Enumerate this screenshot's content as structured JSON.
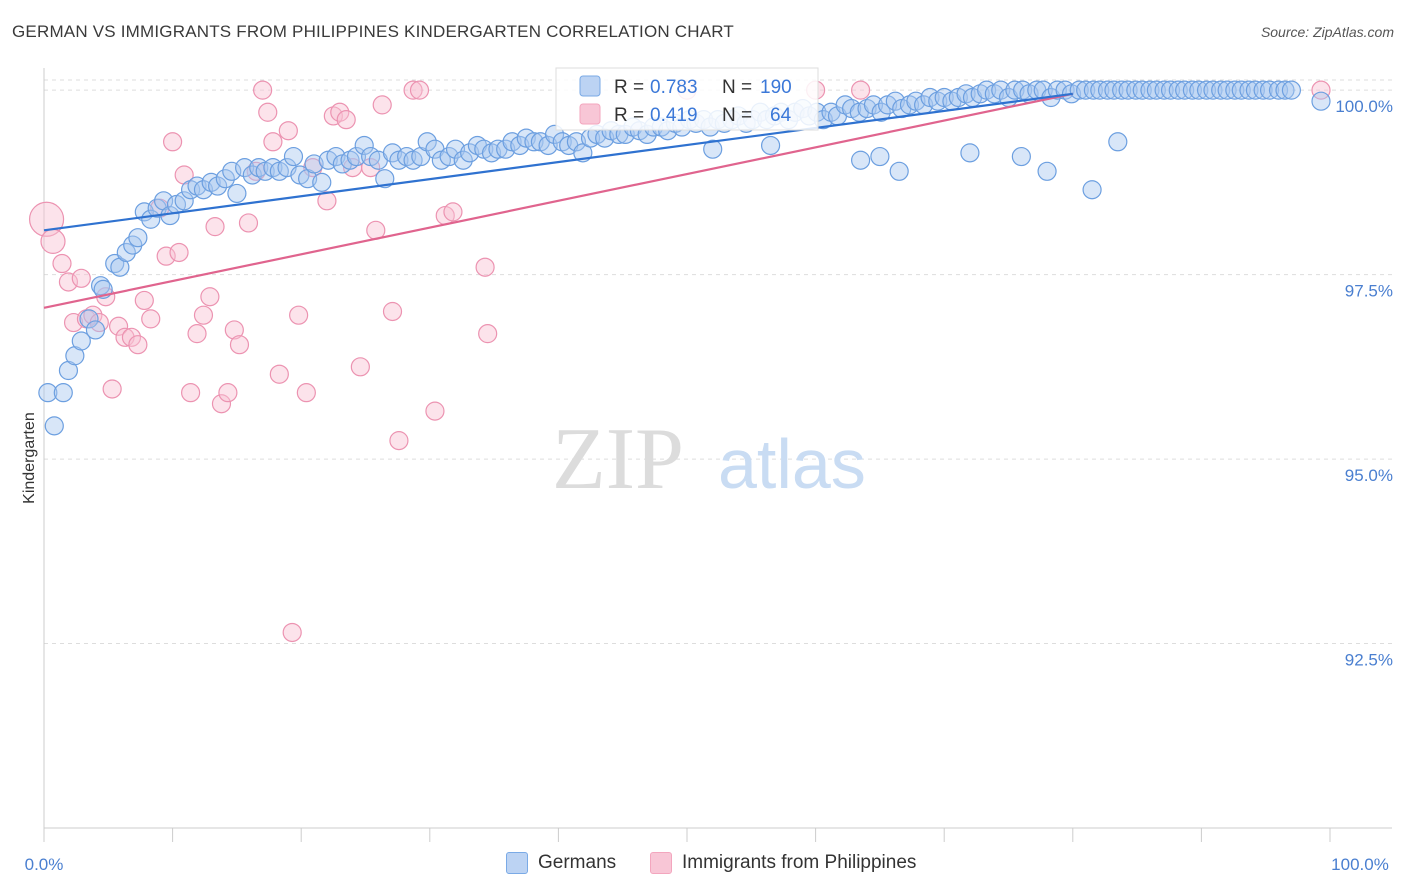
{
  "title": "GERMAN VS IMMIGRANTS FROM PHILIPPINES KINDERGARTEN CORRELATION CHART",
  "source": "Source: ZipAtlas.com",
  "watermark": {
    "zip": "ZIP",
    "atlas": "atlas"
  },
  "colors": {
    "blue": "#7aaae6",
    "blue_line": "#2f72d0",
    "pink": "#f3a6be",
    "pink_line": "#e0648e",
    "grid": "#dddddd",
    "tick_text": "#4a7fd0"
  },
  "legend": {
    "blue": {
      "r_label": "R =",
      "r_value": "0.783",
      "n_label": "N =",
      "n_value": "190"
    },
    "pink": {
      "r_label": "R =",
      "r_value": "0.419",
      "n_label": "N =",
      "n_value": "64"
    }
  },
  "bottom_legend": {
    "germans": "Germans",
    "philippines": "Immigrants from Philippines"
  },
  "chart_data": {
    "type": "scatter",
    "title": "GERMAN VS IMMIGRANTS FROM PHILIPPINES KINDERGARTEN CORRELATION CHART",
    "xlabel": "",
    "ylabel": "Kindergarten",
    "xlim": [
      0,
      100
    ],
    "ylim": [
      90.0,
      100.3
    ],
    "x_tick_labels": [
      "0.0%",
      "100.0%"
    ],
    "y_ticks": [
      92.5,
      95.0,
      97.5,
      100.0
    ],
    "y_tick_labels": [
      "92.5%",
      "95.0%",
      "97.5%",
      "100.0%"
    ],
    "grid": true,
    "legend_position": "top-center",
    "series": [
      {
        "name": "Germans",
        "color": "#7aaae6",
        "r": 0.783,
        "n": 190,
        "trend": {
          "x": [
            0,
            80
          ],
          "y": [
            98.1,
            99.95
          ]
        },
        "points": [
          [
            0.3,
            95.9
          ],
          [
            0.8,
            95.45
          ],
          [
            1.5,
            95.9
          ],
          [
            1.9,
            96.2
          ],
          [
            2.4,
            96.4
          ],
          [
            2.9,
            96.6
          ],
          [
            3.5,
            96.9
          ],
          [
            4.0,
            96.75
          ],
          [
            4.4,
            97.35
          ],
          [
            4.6,
            97.3
          ],
          [
            5.5,
            97.65
          ],
          [
            5.9,
            97.6
          ],
          [
            6.4,
            97.8
          ],
          [
            6.9,
            97.9
          ],
          [
            7.3,
            98.0
          ],
          [
            7.8,
            98.35
          ],
          [
            8.3,
            98.25
          ],
          [
            8.8,
            98.4
          ],
          [
            9.3,
            98.5
          ],
          [
            9.8,
            98.3
          ],
          [
            10.3,
            98.45
          ],
          [
            10.9,
            98.5
          ],
          [
            11.4,
            98.65
          ],
          [
            11.9,
            98.7
          ],
          [
            12.4,
            98.65
          ],
          [
            13.0,
            98.75
          ],
          [
            13.5,
            98.7
          ],
          [
            14.1,
            98.8
          ],
          [
            14.6,
            98.9
          ],
          [
            15.0,
            98.6
          ],
          [
            15.6,
            98.95
          ],
          [
            16.2,
            98.85
          ],
          [
            16.7,
            98.95
          ],
          [
            17.2,
            98.9
          ],
          [
            17.8,
            98.95
          ],
          [
            18.3,
            98.9
          ],
          [
            18.9,
            98.95
          ],
          [
            19.4,
            99.1
          ],
          [
            19.9,
            98.85
          ],
          [
            20.5,
            98.8
          ],
          [
            21.0,
            99.0
          ],
          [
            21.6,
            98.75
          ],
          [
            22.1,
            99.05
          ],
          [
            22.7,
            99.1
          ],
          [
            23.2,
            99.0
          ],
          [
            23.8,
            99.05
          ],
          [
            24.3,
            99.1
          ],
          [
            24.9,
            99.25
          ],
          [
            25.4,
            99.1
          ],
          [
            26.0,
            99.05
          ],
          [
            26.5,
            98.8
          ],
          [
            27.1,
            99.15
          ],
          [
            27.6,
            99.05
          ],
          [
            28.2,
            99.1
          ],
          [
            28.7,
            99.05
          ],
          [
            29.3,
            99.1
          ],
          [
            29.8,
            99.3
          ],
          [
            30.4,
            99.2
          ],
          [
            30.9,
            99.05
          ],
          [
            31.5,
            99.1
          ],
          [
            32.0,
            99.2
          ],
          [
            32.6,
            99.05
          ],
          [
            33.1,
            99.15
          ],
          [
            33.7,
            99.25
          ],
          [
            34.2,
            99.2
          ],
          [
            34.8,
            99.15
          ],
          [
            35.3,
            99.2
          ],
          [
            35.9,
            99.2
          ],
          [
            36.4,
            99.3
          ],
          [
            37.0,
            99.25
          ],
          [
            37.5,
            99.35
          ],
          [
            38.1,
            99.3
          ],
          [
            38.6,
            99.3
          ],
          [
            39.2,
            99.25
          ],
          [
            39.7,
            99.4
          ],
          [
            40.3,
            99.3
          ],
          [
            40.8,
            99.25
          ],
          [
            41.4,
            99.3
          ],
          [
            41.9,
            99.15
          ],
          [
            42.5,
            99.35
          ],
          [
            43.0,
            99.4
          ],
          [
            43.6,
            99.35
          ],
          [
            44.1,
            99.45
          ],
          [
            44.7,
            99.4
          ],
          [
            45.2,
            99.4
          ],
          [
            45.8,
            99.5
          ],
          [
            46.3,
            99.45
          ],
          [
            46.9,
            99.4
          ],
          [
            47.4,
            99.5
          ],
          [
            48.0,
            99.5
          ],
          [
            48.5,
            99.45
          ],
          [
            49.1,
            99.55
          ],
          [
            49.6,
            99.5
          ],
          [
            50.2,
            99.6
          ],
          [
            50.7,
            99.55
          ],
          [
            51.3,
            99.6
          ],
          [
            51.8,
            99.5
          ],
          [
            52.4,
            99.6
          ],
          [
            52.9,
            99.55
          ],
          [
            53.5,
            99.6
          ],
          [
            54.0,
            99.65
          ],
          [
            54.6,
            99.55
          ],
          [
            55.1,
            99.6
          ],
          [
            55.7,
            99.7
          ],
          [
            56.2,
            99.6
          ],
          [
            56.8,
            99.65
          ],
          [
            57.3,
            99.7
          ],
          [
            57.9,
            99.6
          ],
          [
            58.4,
            99.7
          ],
          [
            59.0,
            99.75
          ],
          [
            59.5,
            99.65
          ],
          [
            60.1,
            99.7
          ],
          [
            60.6,
            99.6
          ],
          [
            61.2,
            99.7
          ],
          [
            61.7,
            99.65
          ],
          [
            62.3,
            99.8
          ],
          [
            62.8,
            99.75
          ],
          [
            63.4,
            99.7
          ],
          [
            64.0,
            99.75
          ],
          [
            64.5,
            99.8
          ],
          [
            65.1,
            99.7
          ],
          [
            65.6,
            99.8
          ],
          [
            66.2,
            99.85
          ],
          [
            66.7,
            99.75
          ],
          [
            67.3,
            99.8
          ],
          [
            67.8,
            99.85
          ],
          [
            68.4,
            99.8
          ],
          [
            68.9,
            99.9
          ],
          [
            69.5,
            99.85
          ],
          [
            70.0,
            99.9
          ],
          [
            70.6,
            99.85
          ],
          [
            71.1,
            99.9
          ],
          [
            71.7,
            99.95
          ],
          [
            72.2,
            99.9
          ],
          [
            72.8,
            99.95
          ],
          [
            73.3,
            100.0
          ],
          [
            73.9,
            99.95
          ],
          [
            74.4,
            100.0
          ],
          [
            75.0,
            99.9
          ],
          [
            75.5,
            100.0
          ],
          [
            76.1,
            100.0
          ],
          [
            76.6,
            99.95
          ],
          [
            77.2,
            100.0
          ],
          [
            77.7,
            100.0
          ],
          [
            78.3,
            99.9
          ],
          [
            78.8,
            100.0
          ],
          [
            79.4,
            100.0
          ],
          [
            79.9,
            99.95
          ],
          [
            80.5,
            100.0
          ],
          [
            81.0,
            100.0
          ],
          [
            81.6,
            100.0
          ],
          [
            82.1,
            100.0
          ],
          [
            82.7,
            100.0
          ],
          [
            83.2,
            100.0
          ],
          [
            83.8,
            100.0
          ],
          [
            84.3,
            100.0
          ],
          [
            84.9,
            100.0
          ],
          [
            85.4,
            100.0
          ],
          [
            86.0,
            100.0
          ],
          [
            86.5,
            100.0
          ],
          [
            87.1,
            100.0
          ],
          [
            87.6,
            100.0
          ],
          [
            88.2,
            100.0
          ],
          [
            88.7,
            100.0
          ],
          [
            89.3,
            100.0
          ],
          [
            89.8,
            100.0
          ],
          [
            90.4,
            100.0
          ],
          [
            90.9,
            100.0
          ],
          [
            91.5,
            100.0
          ],
          [
            92.0,
            100.0
          ],
          [
            92.6,
            100.0
          ],
          [
            93.1,
            100.0
          ],
          [
            93.7,
            100.0
          ],
          [
            94.2,
            100.0
          ],
          [
            94.8,
            100.0
          ],
          [
            95.3,
            100.0
          ],
          [
            96.0,
            100.0
          ],
          [
            96.5,
            100.0
          ],
          [
            97.0,
            100.0
          ],
          [
            99.3,
            99.85
          ],
          [
            63.5,
            99.05
          ],
          [
            65.0,
            99.1
          ],
          [
            66.5,
            98.9
          ],
          [
            76.0,
            99.1
          ],
          [
            78.0,
            98.9
          ],
          [
            81.5,
            98.65
          ],
          [
            83.5,
            99.3
          ],
          [
            72.0,
            99.15
          ],
          [
            52.0,
            99.2
          ],
          [
            56.5,
            99.25
          ]
        ]
      },
      {
        "name": "Immigrants from Philippines",
        "color": "#f3a6be",
        "r": 0.419,
        "n": 64,
        "trend": {
          "x": [
            0,
            80
          ],
          "y": [
            97.05,
            99.95
          ]
        },
        "points": [
          [
            0.2,
            98.25
          ],
          [
            0.7,
            97.95
          ],
          [
            1.4,
            97.65
          ],
          [
            1.9,
            97.4
          ],
          [
            2.3,
            96.85
          ],
          [
            2.9,
            97.45
          ],
          [
            3.3,
            96.9
          ],
          [
            3.8,
            96.95
          ],
          [
            4.3,
            96.85
          ],
          [
            4.8,
            97.2
          ],
          [
            5.3,
            95.95
          ],
          [
            5.8,
            96.8
          ],
          [
            6.3,
            96.65
          ],
          [
            6.8,
            96.65
          ],
          [
            7.3,
            96.55
          ],
          [
            7.8,
            97.15
          ],
          [
            8.3,
            96.9
          ],
          [
            9.0,
            98.4
          ],
          [
            9.5,
            97.75
          ],
          [
            10.0,
            99.3
          ],
          [
            10.5,
            97.8
          ],
          [
            10.9,
            98.85
          ],
          [
            11.4,
            95.9
          ],
          [
            11.9,
            96.7
          ],
          [
            12.4,
            96.95
          ],
          [
            12.9,
            97.2
          ],
          [
            13.3,
            98.15
          ],
          [
            13.8,
            95.75
          ],
          [
            14.3,
            95.9
          ],
          [
            14.8,
            96.75
          ],
          [
            15.2,
            96.55
          ],
          [
            15.9,
            98.2
          ],
          [
            16.5,
            98.9
          ],
          [
            17.0,
            100.0
          ],
          [
            17.4,
            99.7
          ],
          [
            17.8,
            99.3
          ],
          [
            18.3,
            96.15
          ],
          [
            19.0,
            99.45
          ],
          [
            19.3,
            92.65
          ],
          [
            19.8,
            96.95
          ],
          [
            20.4,
            95.9
          ],
          [
            20.9,
            98.95
          ],
          [
            22.0,
            98.5
          ],
          [
            22.5,
            99.65
          ],
          [
            23.0,
            99.7
          ],
          [
            23.5,
            99.6
          ],
          [
            24.0,
            98.95
          ],
          [
            24.6,
            96.25
          ],
          [
            25.4,
            98.95
          ],
          [
            25.8,
            98.1
          ],
          [
            26.3,
            99.8
          ],
          [
            27.1,
            97.0
          ],
          [
            27.6,
            95.25
          ],
          [
            28.7,
            100.0
          ],
          [
            29.2,
            100.0
          ],
          [
            30.4,
            95.65
          ],
          [
            31.2,
            98.3
          ],
          [
            31.8,
            98.35
          ],
          [
            34.3,
            97.6
          ],
          [
            34.5,
            96.7
          ],
          [
            50.0,
            100.0
          ],
          [
            60.0,
            100.0
          ],
          [
            63.5,
            100.0
          ],
          [
            99.3,
            100.0
          ]
        ]
      }
    ]
  }
}
